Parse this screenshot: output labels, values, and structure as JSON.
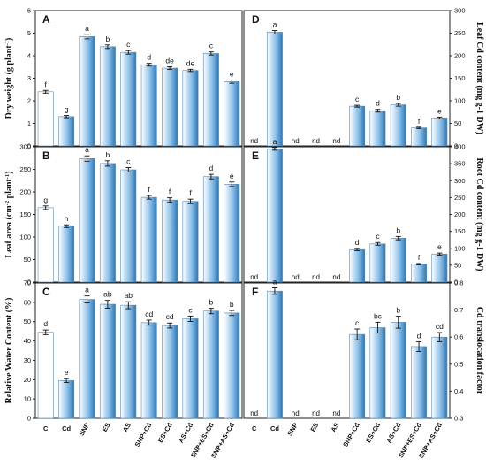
{
  "categories": [
    "C",
    "Cd",
    "SNP",
    "ES",
    "AS",
    "SNP+Cd",
    "ES+Cd",
    "AS+Cd",
    "SNP+ES+Cd",
    "SNP+AS+Cd"
  ],
  "colors": {
    "bar_dark": "#2a78b8",
    "bar_light": "#ffffff",
    "axis": "#222222",
    "error": "#111111"
  },
  "chart_data": [
    {
      "type": "bar",
      "panel_label": "A",
      "ylabel": "Dry weight (g plant-1)",
      "ylim": [
        0,
        6
      ],
      "yticks": [
        "0",
        "1",
        "2",
        "3",
        "4",
        "5",
        "6"
      ],
      "values": [
        2.4,
        1.3,
        4.85,
        4.4,
        4.15,
        3.6,
        3.45,
        3.35,
        4.1,
        2.85
      ],
      "errors": [
        0.06,
        0.05,
        0.1,
        0.08,
        0.08,
        0.06,
        0.06,
        0.05,
        0.07,
        0.07
      ],
      "letters": [
        "f",
        "g",
        "a",
        "b",
        "c",
        "d",
        "de",
        "de",
        "c",
        "e"
      ]
    },
    {
      "type": "bar",
      "panel_label": "B",
      "ylabel": "Leaf area (cm-2 plant-1)",
      "ylim": [
        0,
        300
      ],
      "yticks": [
        "0",
        "50",
        "100",
        "150",
        "200",
        "250",
        "300"
      ],
      "values": [
        165,
        124,
        274,
        263,
        249,
        188,
        182,
        179,
        234,
        217
      ],
      "errors": [
        4,
        3,
        6,
        6,
        5,
        4,
        5,
        5,
        5,
        5
      ],
      "letters": [
        "g",
        "h",
        "a",
        "b",
        "c",
        "f",
        "f",
        "f",
        "d",
        "e"
      ]
    },
    {
      "type": "bar",
      "panel_label": "C",
      "ylabel": "Relative Water Content (%)",
      "ylim": [
        0,
        70
      ],
      "yticks": [
        "0",
        "10",
        "20",
        "30",
        "40",
        "50",
        "60",
        "70"
      ],
      "values": [
        44.5,
        19.5,
        61.5,
        59,
        58.5,
        49.5,
        48,
        51.5,
        55.5,
        54.5
      ],
      "errors": [
        1.2,
        1,
        1.8,
        2,
        1.8,
        1.3,
        1.3,
        1.4,
        1.4,
        1.3
      ],
      "letters": [
        "d",
        "e",
        "a",
        "ab",
        "ab",
        "cd",
        "cd",
        "c",
        "b",
        "b"
      ]
    },
    {
      "type": "bar",
      "panel_label": "D",
      "ylabel": "Leaf Cd content (mg g-1 DW)",
      "ylim": [
        0,
        300
      ],
      "yticks": [
        "0",
        "50",
        "100",
        "150",
        "200",
        "250",
        "300"
      ],
      "values": [
        null,
        252,
        null,
        null,
        null,
        88,
        78,
        91,
        40,
        62
      ],
      "errors": [
        0,
        4,
        0,
        0,
        0,
        2,
        3,
        3,
        1.5,
        2
      ],
      "letters": [
        "nd",
        "a",
        "nd",
        "nd",
        "nd",
        "c",
        "d",
        "b",
        "f",
        "e"
      ]
    },
    {
      "type": "bar",
      "panel_label": "E",
      "ylabel": "Root Cd content (mg g-1 DW)",
      "ylim": [
        0,
        400
      ],
      "yticks": [
        "0",
        "50",
        "100",
        "150",
        "200",
        "250",
        "300",
        "350",
        "400"
      ],
      "values": [
        null,
        394,
        null,
        null,
        null,
        96,
        113,
        130,
        53,
        83
      ],
      "errors": [
        0,
        4,
        0,
        0,
        0,
        3,
        4,
        5,
        2,
        3
      ],
      "letters": [
        "nd",
        "a",
        "nd",
        "nd",
        "nd",
        "d",
        "c",
        "b",
        "f",
        "e"
      ]
    },
    {
      "type": "bar",
      "panel_label": "F",
      "ylabel": "Cd translocation factor",
      "ylim": [
        0.3,
        0.8
      ],
      "yticks": [
        "0.3",
        "0.4",
        "0.5",
        "0.6",
        "0.7",
        "0.8"
      ],
      "values": [
        null,
        0.77,
        null,
        null,
        null,
        0.61,
        0.635,
        0.655,
        0.565,
        0.6
      ],
      "errors": [
        0,
        0.012,
        0,
        0,
        0,
        0.02,
        0.02,
        0.022,
        0.018,
        0.017
      ],
      "letters": [
        "nd",
        "a",
        "nd",
        "nd",
        "nd",
        "c",
        "bc",
        "b",
        "d",
        "cd"
      ]
    }
  ]
}
